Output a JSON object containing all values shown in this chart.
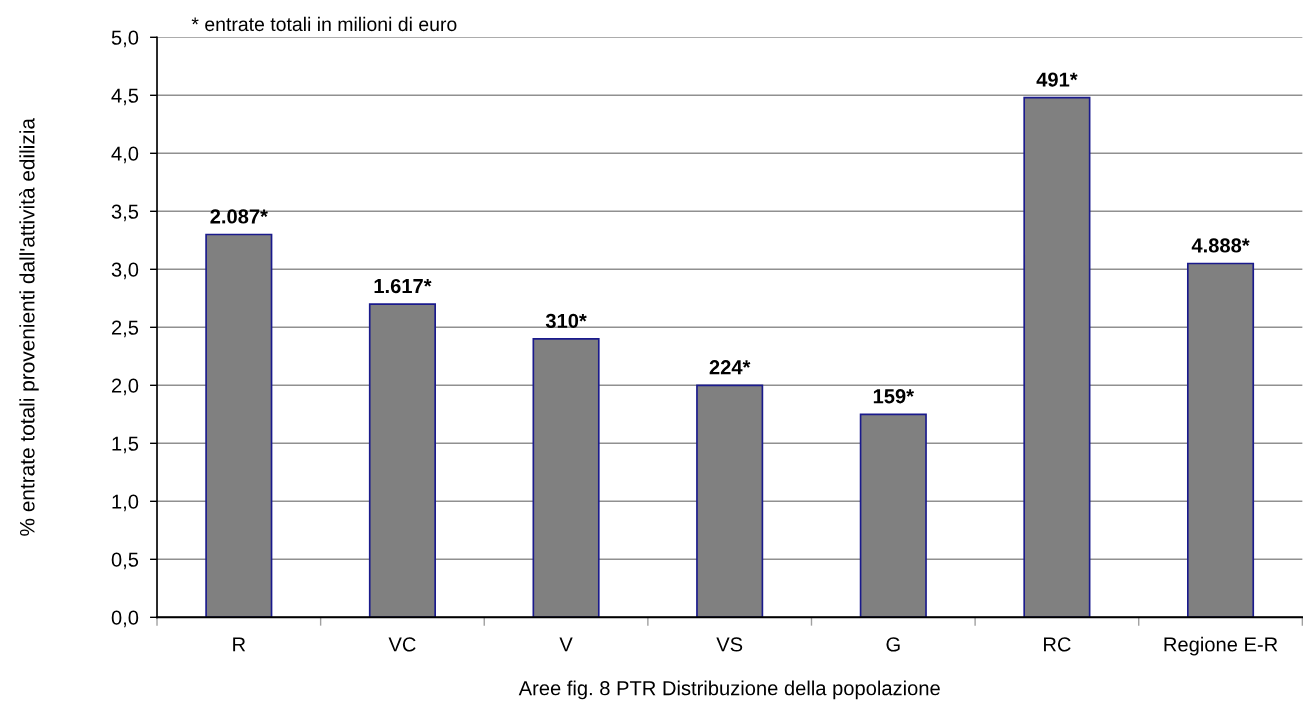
{
  "chart_data": {
    "type": "bar",
    "xlabel": "Aree fig. 8 PTR Distribuzione della popolazione",
    "ylabel": "% entrate totali provenienti dall'attività edilizia",
    "annotations": [
      "* entrate totali in milioni di euro",
      {
        "text": "2.087*",
        "x": "R",
        "y": 3.3
      },
      {
        "text": "1.617*",
        "x": "VC",
        "y": 2.7
      },
      {
        "text": "310*",
        "x": "V",
        "y": 2.4
      },
      {
        "text": "224*",
        "x": "VS",
        "y": 2.0
      },
      {
        "text": "159*",
        "x": "G",
        "y": 1.75
      },
      {
        "text": "491*",
        "x": "RC",
        "y": 4.48
      },
      {
        "text": "4.888*",
        "x": "Regione E-R",
        "y": 3.05
      }
    ],
    "categories": [
      "R",
      "VC",
      "V",
      "VS",
      "G",
      "RC",
      "Regione E-R"
    ],
    "values": [
      3.3,
      2.7,
      2.4,
      2.0,
      1.75,
      4.48,
      3.05
    ],
    "color": "#808080",
    "ylim": [
      0,
      5
    ],
    "yticks": [
      {
        "value": 0,
        "label": "0,0"
      },
      {
        "value": 0.5,
        "label": "0,5"
      },
      {
        "value": 1,
        "label": "1,0"
      },
      {
        "value": 1.5,
        "label": "1,5"
      },
      {
        "value": 2,
        "label": "2,0"
      },
      {
        "value": 2.5,
        "label": "2,5"
      },
      {
        "value": 3,
        "label": "3,0"
      },
      {
        "value": 3.5,
        "label": "3,5"
      },
      {
        "value": 4,
        "label": "4,0"
      },
      {
        "value": 4.5,
        "label": "4,5"
      },
      {
        "value": 5,
        "label": "5,0"
      }
    ],
    "grid": "y"
  }
}
